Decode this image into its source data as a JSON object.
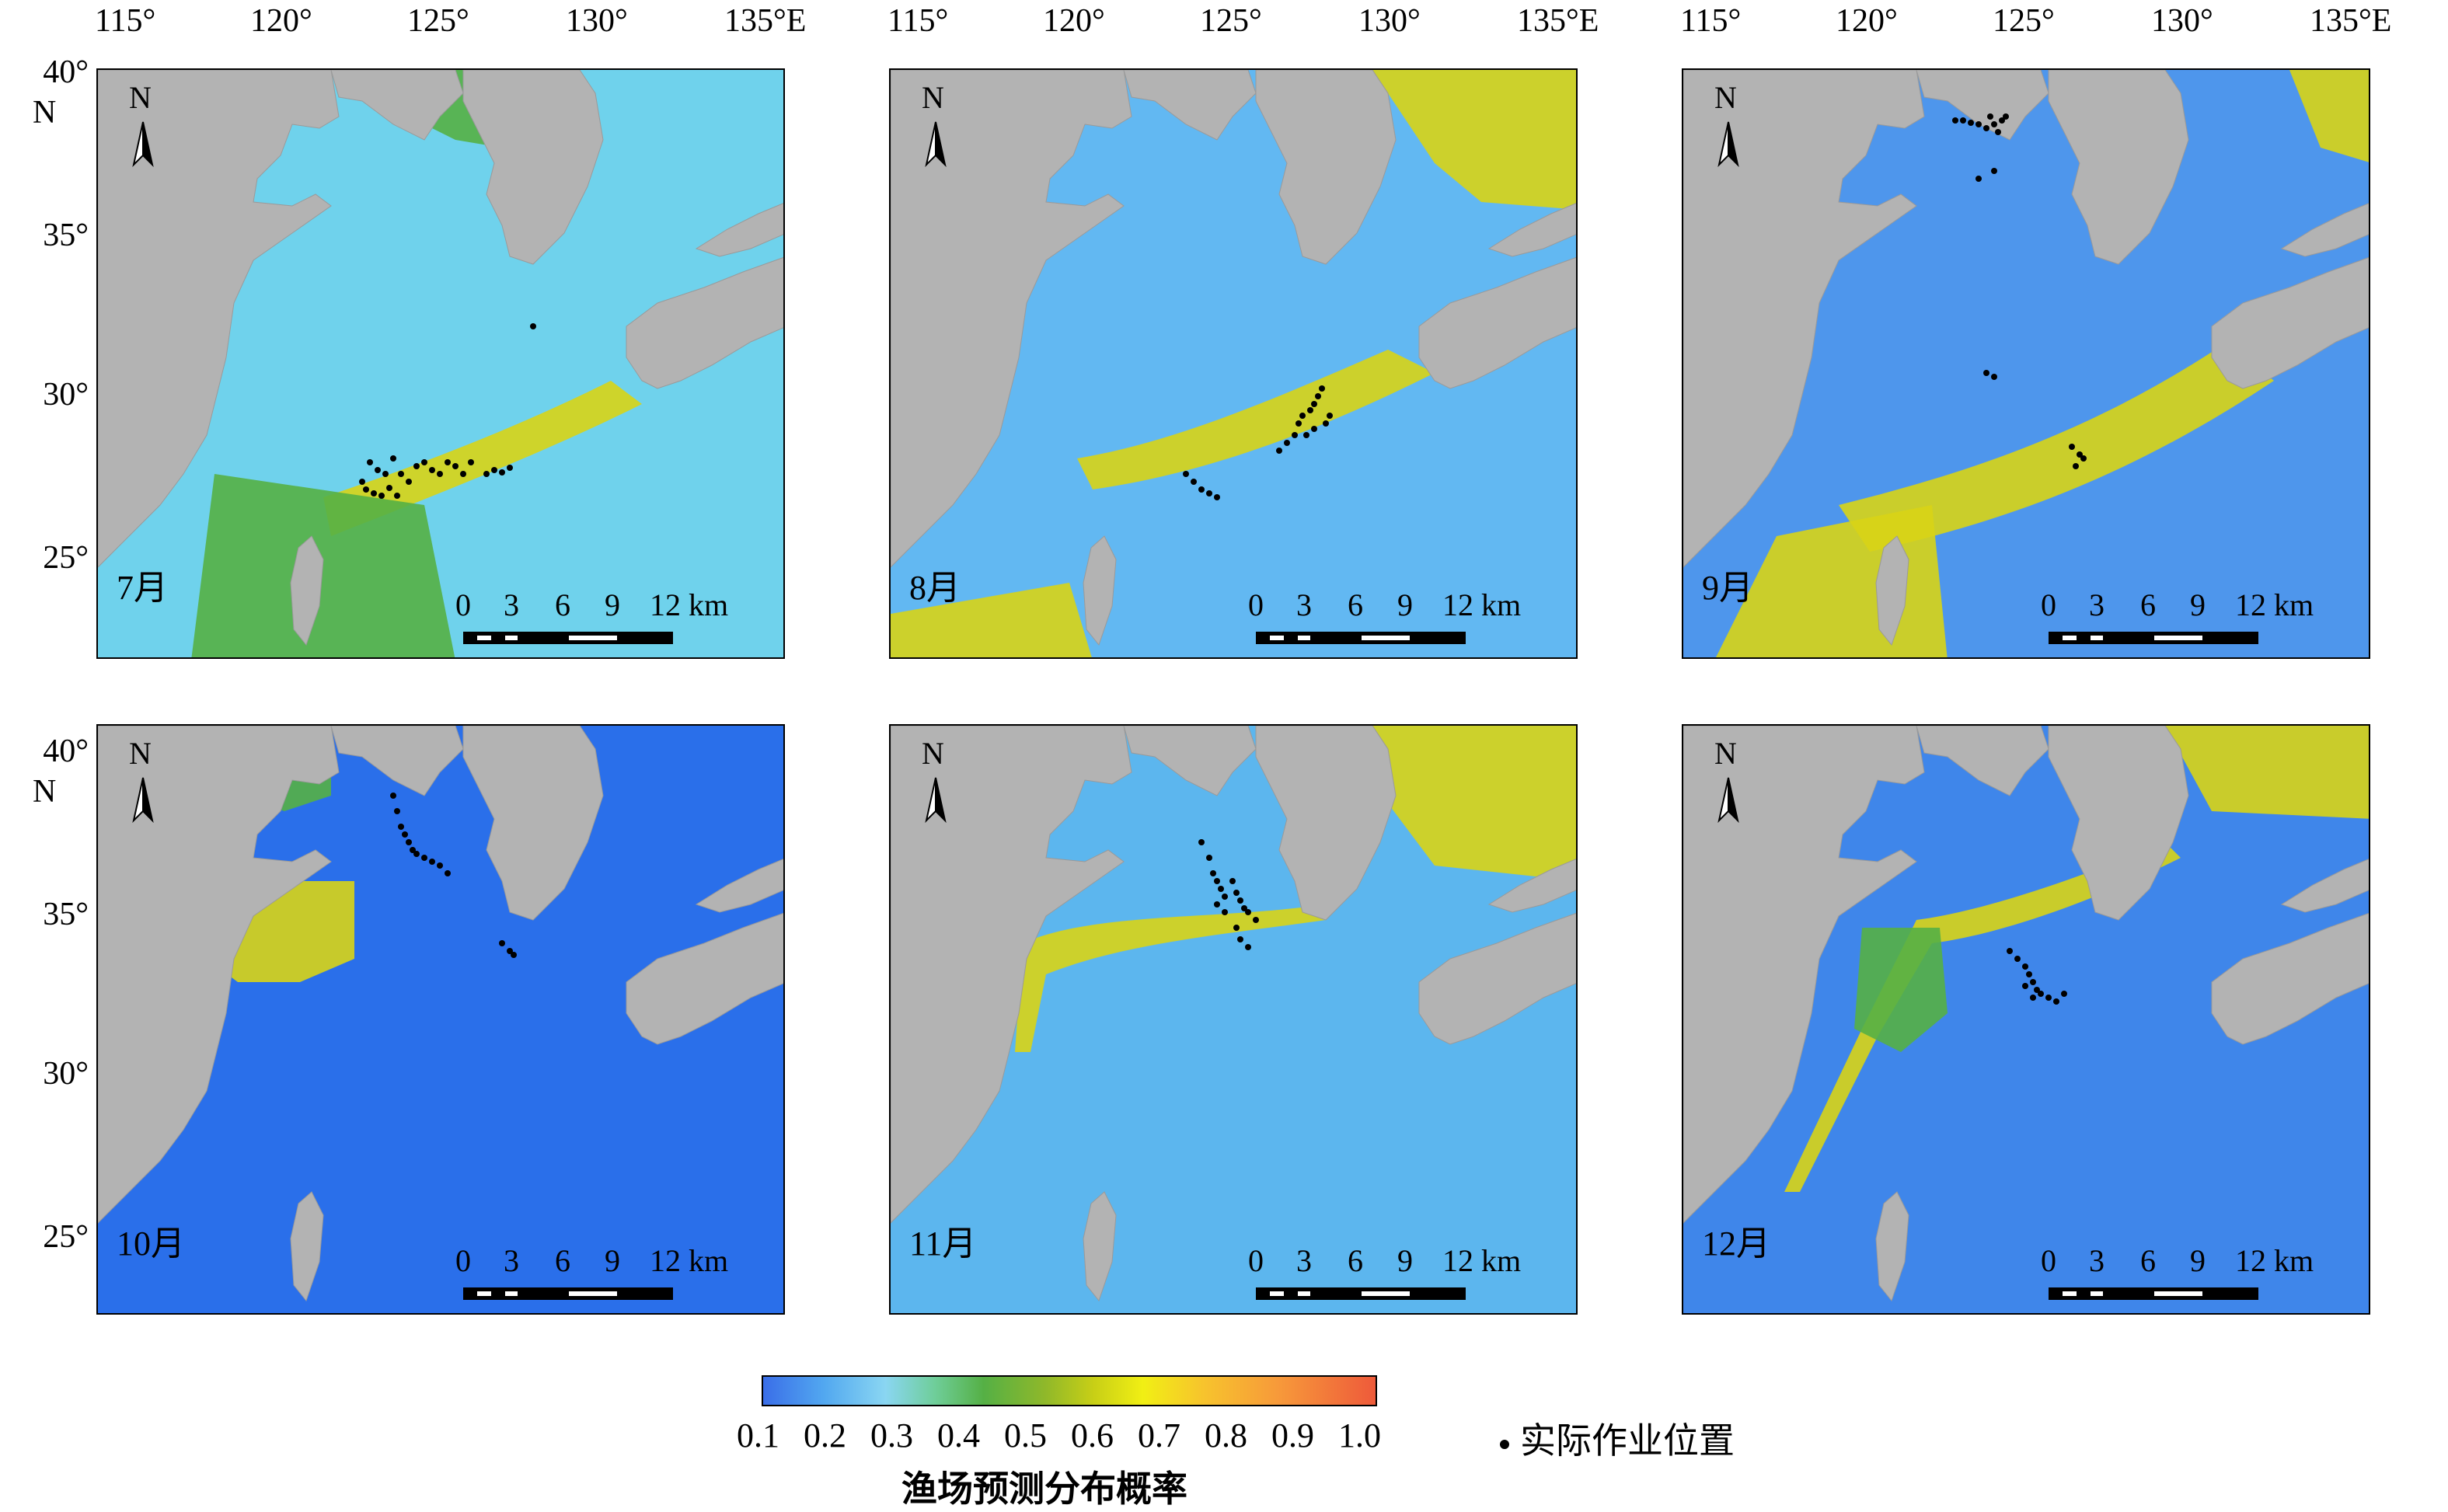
{
  "axes": {
    "lon_labels": [
      "115°",
      "120°",
      "125°",
      "130°",
      "135°E"
    ],
    "lat_labels": [
      "40°",
      "35°",
      "30°",
      "25°"
    ],
    "lat_suffix": "N"
  },
  "north_arrow": {
    "letter": "N"
  },
  "scale_bar": {
    "labels": [
      "0",
      "3",
      "6",
      "9",
      "12 km"
    ]
  },
  "panels": [
    {
      "month": "7月",
      "dominant_color": "#6fd2ec"
    },
    {
      "month": "8月",
      "dominant_color": "#62b8f2"
    },
    {
      "month": "9月",
      "dominant_color": "#4e96ec"
    },
    {
      "month": "10月",
      "dominant_color": "#2a6fea"
    },
    {
      "month": "11月",
      "dominant_color": "#5cb6ee"
    },
    {
      "month": "12月",
      "dominant_color": "#3f86ea"
    }
  ],
  "legend": {
    "ticks": [
      "0.1",
      "0.2",
      "0.3",
      "0.4",
      "0.5",
      "0.6",
      "0.7",
      "0.8",
      "0.9",
      "1.0"
    ],
    "title": "渔场预测分布概率",
    "actual_positions_label": "实际作业位置"
  },
  "colors": {
    "land": "#b3b3b3",
    "ocean_low": "#3a6ee8",
    "ocean_mid": "#8ad6f2",
    "band_green": "#55b045",
    "band_yellow": "#d8d416"
  }
}
